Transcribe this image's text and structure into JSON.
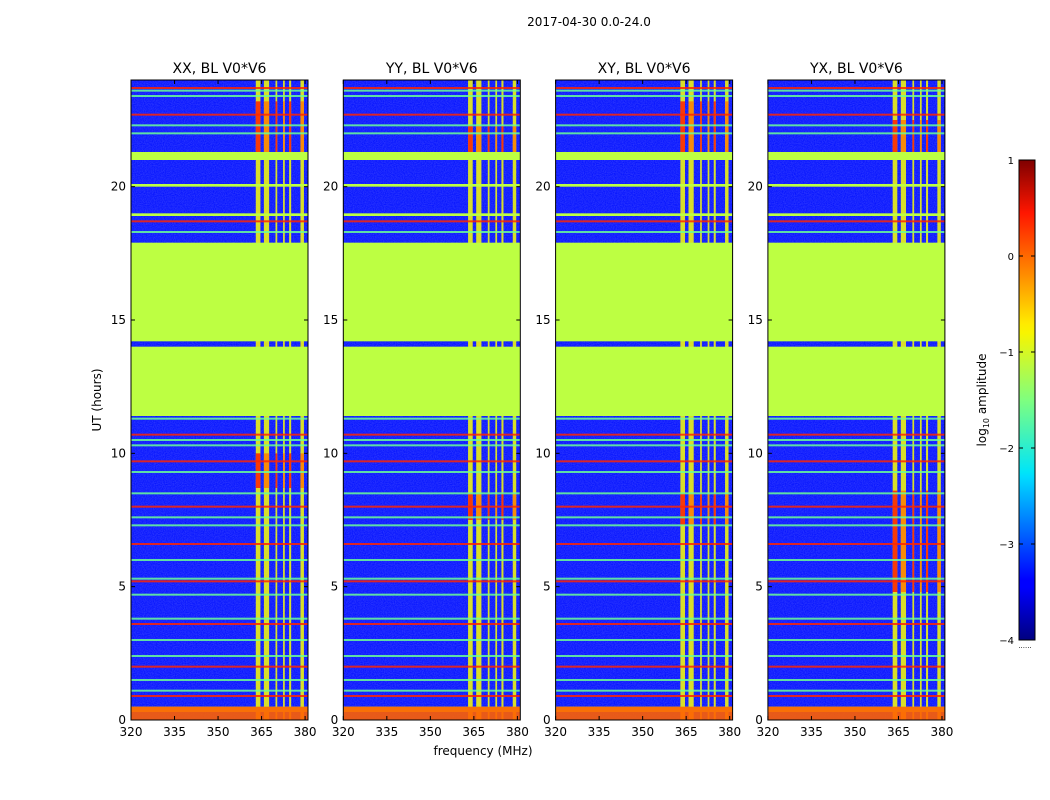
{
  "figure": {
    "suptitle": "2017-04-30 0.0-24.0",
    "xlabel": "frequency (MHz)",
    "ylabel": "UT (hours)",
    "colorbar_label_prefix": "log",
    "colorbar_label_sub": "10",
    "colorbar_label_suffix": " amplitude",
    "colorbar_footer": "......"
  },
  "chart_data": {
    "type": "heatmap",
    "xlim": [
      320,
      381
    ],
    "ylim": [
      0,
      24
    ],
    "xticks": [
      320,
      335,
      350,
      365,
      380
    ],
    "yticks": [
      0,
      5,
      10,
      15,
      20
    ],
    "clim": [
      -4,
      1
    ],
    "colorbar_ticks": [
      -4,
      -3,
      -2,
      -1,
      0,
      1
    ],
    "colorbar_tick_labels": [
      "−4",
      "−3",
      "−2",
      "−1",
      "0",
      "1"
    ],
    "panels": [
      {
        "title": "XX, BL V0*V6",
        "high_band_hours": [
          [
            21.1,
            23.2
          ],
          [
            8.7,
            10.0
          ]
        ]
      },
      {
        "title": "YY, BL V0*V6",
        "high_band_hours": [
          [
            21.1,
            22.3
          ],
          [
            7.5,
            8.5
          ]
        ]
      },
      {
        "title": "XY, BL V0*V6",
        "high_band_hours": [
          [
            21.1,
            23.2
          ],
          [
            7.3,
            8.5
          ]
        ]
      },
      {
        "title": "YX, BL V0*V6",
        "high_band_hours": [
          [
            21.1,
            22.5
          ],
          [
            4.8,
            8.6
          ]
        ]
      }
    ],
    "flagged_hours": [
      [
        11.4,
        14.0
      ],
      [
        14.2,
        17.9
      ],
      [
        21.0,
        21.3
      ],
      [
        20.0,
        20.1
      ],
      [
        18.9,
        19.0
      ],
      [
        0.3,
        0.5
      ]
    ],
    "flagged_value": -1.2,
    "background_value": -3.3,
    "rfi_channel_bands_mhz": [
      [
        363.0,
        364.6
      ],
      [
        365.8,
        367.6
      ],
      [
        369.8,
        370.4
      ],
      [
        372.4,
        373.0
      ],
      [
        374.5,
        375.2
      ],
      [
        378.4,
        379.6
      ]
    ],
    "rfi_channel_value": -0.9,
    "rfi_horizontal_lines_hours": [
      0.9,
      1.1,
      1.5,
      2.0,
      2.4,
      3.0,
      3.6,
      3.8,
      4.7,
      5.2,
      5.3,
      6.0,
      6.6,
      7.3,
      7.6,
      8.0,
      8.5,
      9.3,
      9.7,
      10.3,
      10.5,
      10.7,
      11.3,
      18.3,
      18.7,
      22.0,
      22.3,
      22.7,
      23.4,
      23.6,
      23.7
    ]
  }
}
